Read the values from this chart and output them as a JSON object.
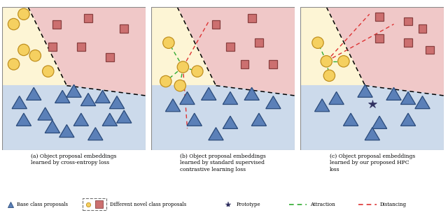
{
  "fig_width": 6.4,
  "fig_height": 3.08,
  "dpi": 100,
  "background": "#ffffff",
  "panel_bg_pink": "#f0c8c8",
  "panel_bg_yellow": "#fdf5d5",
  "panel_bg_blue": "#ccdaeb",
  "panel_border": "#aaaaaa",
  "triangle_color": "#5b80b8",
  "triangle_edge": "#2a4a7a",
  "circle_color": "#f5d060",
  "circle_edge": "#c09020",
  "square_color": "#cc7070",
  "square_edge": "#884040",
  "star_color": "#303060",
  "dashed_border": "#707070",
  "green_line": "#30aa30",
  "red_line": "#dd3333",
  "captions": [
    "(a) Object proposal embeddings\nlearned by cross-entropy loss",
    "(b) Object proposal embeddings\nlearned by standard supervised\ncontrastive learning loss",
    "(c) Object proposal embeddings\nlearned by our proposed HPC\nloss"
  ]
}
